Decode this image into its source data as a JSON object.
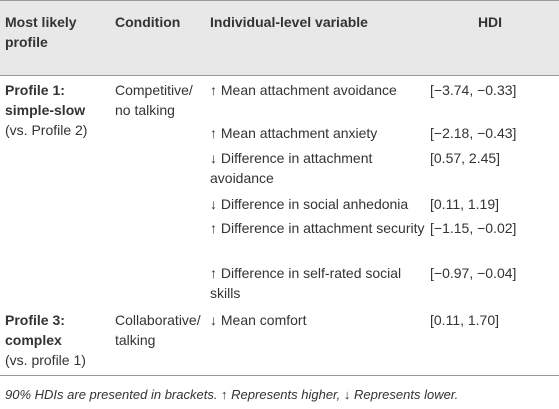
{
  "table": {
    "header": [
      "Most likely profile",
      "Condition",
      "Individual-level variable",
      "HDI"
    ],
    "groups": [
      {
        "profile": "Profile 1: simple-slow",
        "comparison": "(vs. Profile 2)",
        "condition": "Competitive/ no talking",
        "rows": [
          [
            "↑ Mean attachment avoidance",
            "[−3.74, −0.33]"
          ],
          [
            "↑ Mean attachment anxiety",
            "[−2.18, −0.43]"
          ],
          [
            "↓ Difference in attachment avoidance",
            "[0.57, 2.45]"
          ],
          [
            "↓ Difference in social anhedonia",
            "[0.11, 1.19]"
          ],
          [
            "↑ Difference in attachment security",
            "[−1.15, −0.02]"
          ],
          [
            "↑ Difference in self-rated social skills",
            "[−0.97, −0.04]"
          ]
        ]
      },
      {
        "profile": "Profile 3: complex",
        "comparison": "(vs. profile 1)",
        "condition": "Collaborative/ talking",
        "rows": [
          [
            "↓ Mean comfort",
            "[0.11, 1.70]"
          ]
        ]
      }
    ],
    "footnote": "90% HDIs are presented in brackets. ↑ Represents higher, ↓ Represents lower."
  }
}
